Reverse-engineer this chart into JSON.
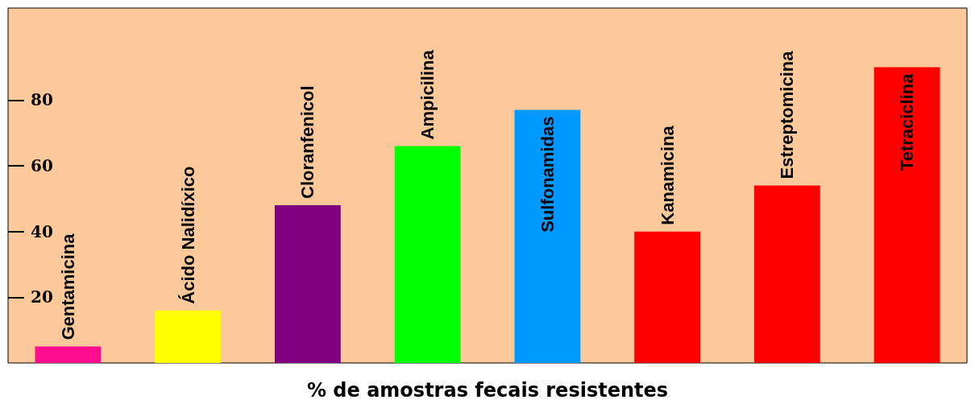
{
  "chart_data": {
    "type": "bar",
    "xlabel": "% de amostras fecais resistentes",
    "categories": [
      "Gentamicina",
      "Ácido Nalidíxico",
      "Cloranfenicol",
      "Ampicilina",
      "Sulfonamidas",
      "Kanamicina",
      "Estreptomicina",
      "Tetraciclina"
    ],
    "values": [
      5,
      16,
      48,
      66,
      77,
      40,
      54,
      90
    ],
    "colors": [
      "#ff0d8f",
      "#ffff00",
      "#800080",
      "#00ff00",
      "#0099ff",
      "#ff0000",
      "#ff0000",
      "#ff0000"
    ],
    "ylim": [
      0,
      108
    ],
    "yticks": [
      20,
      40,
      60,
      80
    ],
    "grid": false
  }
}
